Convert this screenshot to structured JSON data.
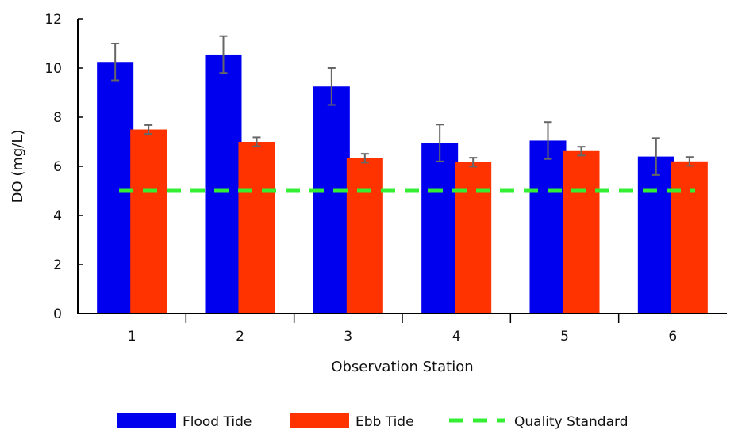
{
  "chart_data": {
    "type": "bar",
    "xlabel": "Observation Station",
    "ylabel": "DO (mg/L)",
    "ylim": [
      0,
      12
    ],
    "yticks": [
      "0",
      "2",
      "4",
      "6",
      "8",
      "10",
      "12"
    ],
    "categories": [
      "1",
      "2",
      "3",
      "4",
      "5",
      "6"
    ],
    "series": [
      {
        "name": "Flood Tide",
        "color": "#0000ee",
        "values": [
          10.25,
          10.55,
          9.25,
          6.95,
          7.05,
          6.4
        ],
        "errors": [
          0.75,
          0.75,
          0.75,
          0.75,
          0.75,
          0.75
        ]
      },
      {
        "name": "Ebb Tide",
        "color": "#ff3300",
        "values": [
          7.5,
          7.0,
          6.33,
          6.17,
          6.62,
          6.2
        ],
        "errors": [
          0.18,
          0.18,
          0.18,
          0.18,
          0.18,
          0.18
        ]
      }
    ],
    "reference_line": {
      "name": "Quality Standard",
      "value": 5,
      "color": "#33ee33",
      "style": "dashed"
    },
    "grid": false,
    "legend_position": "bottom"
  }
}
